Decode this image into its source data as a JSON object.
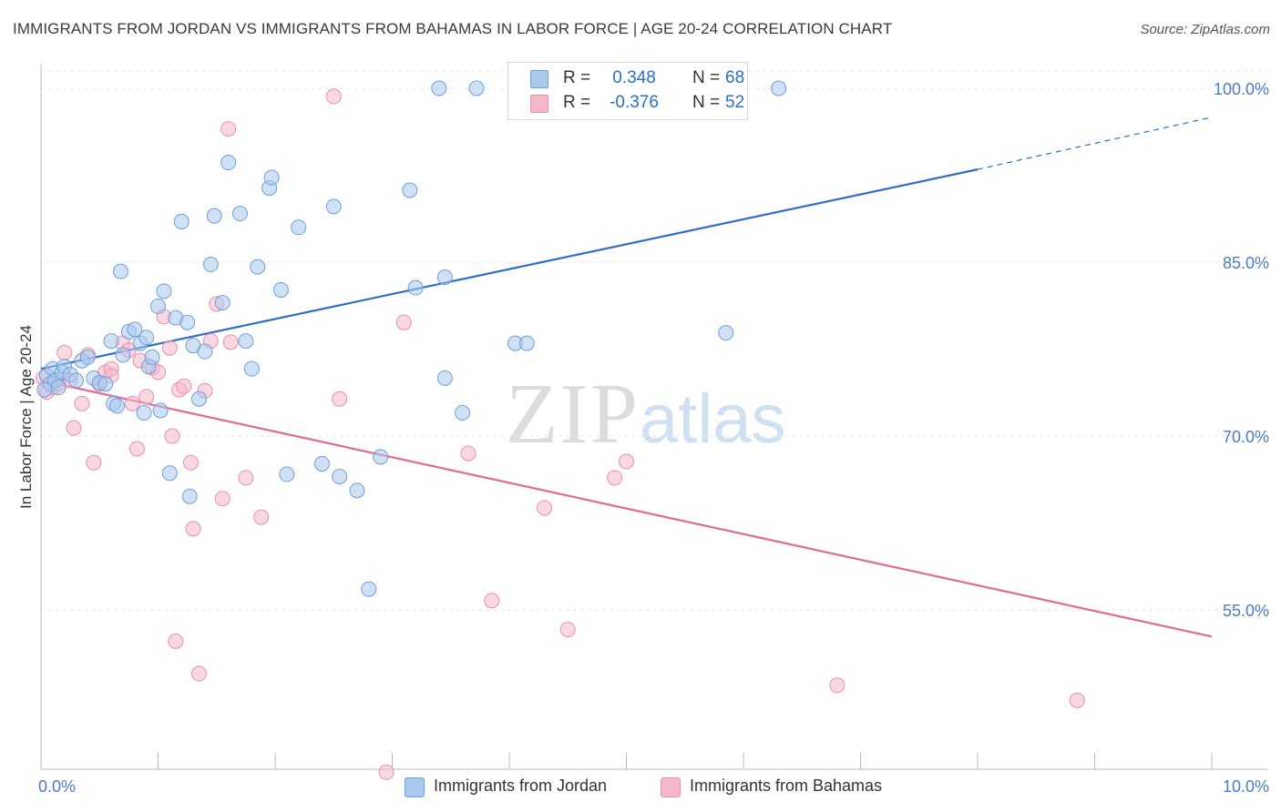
{
  "header": {
    "title": "IMMIGRANTS FROM JORDAN VS IMMIGRANTS FROM BAHAMAS IN LABOR FORCE | AGE 20-24 CORRELATION CHART",
    "source": "Source: ZipAtlas.com"
  },
  "watermark": {
    "zip": "ZIP",
    "atlas": "atlas"
  },
  "legend": {
    "jordan": {
      "r_label": "R =",
      "r_value": "0.348",
      "n_label": "N =",
      "n_value": "68"
    },
    "bahamas": {
      "r_label": "R =",
      "r_value": "-0.376",
      "n_label": "N =",
      "n_value": "52"
    }
  },
  "bottom_legend": {
    "jordan": "Immigrants from Jordan",
    "bahamas": "Immigrants from Bahamas"
  },
  "colors": {
    "jordan_fill": "#a9c8ee",
    "jordan_stroke": "#6f9fd8",
    "jordan_line": "#2e6ec8",
    "bahamas_fill": "#f5b8cb",
    "bahamas_stroke": "#e98fab",
    "bahamas_line": "#e06a95",
    "tick_label": "#4a7cc7",
    "grid": "#e4e4e4"
  },
  "chart_data": {
    "type": "scatter",
    "title": "IMMIGRANTS FROM JORDAN VS IMMIGRANTS FROM BAHAMAS IN LABOR FORCE | AGE 20-24 CORRELATION CHART",
    "xlabel": "",
    "ylabel": "In Labor Force | Age 20-24",
    "xlim": [
      0.0,
      10.0
    ],
    "ylim": [
      40.0,
      102.0
    ],
    "x_tick_labels": [
      "0.0%",
      "10.0%"
    ],
    "y_ticks": [
      55.0,
      70.0,
      85.0,
      100.0
    ],
    "y_tick_labels": [
      "55.0%",
      "70.0%",
      "85.0%",
      "100.0%"
    ],
    "grid": true,
    "legend_position": "top-center",
    "series": [
      {
        "name": "Immigrants from Jordan",
        "r": 0.348,
        "n": 68,
        "trend": {
          "x": [
            0.0,
            8.0
          ],
          "y": [
            75.8,
            93.0
          ],
          "dashed_to": [
            10.0,
            97.5
          ]
        },
        "points": [
          [
            0.05,
            75.2
          ],
          [
            0.08,
            74.5
          ],
          [
            0.1,
            75.8
          ],
          [
            0.12,
            74.8
          ],
          [
            0.15,
            74.2
          ],
          [
            0.18,
            75.5
          ],
          [
            0.2,
            76.0
          ],
          [
            0.25,
            75.3
          ],
          [
            0.3,
            74.8
          ],
          [
            0.35,
            76.5
          ],
          [
            0.4,
            76.8
          ],
          [
            0.45,
            75.0
          ],
          [
            0.5,
            74.6
          ],
          [
            0.55,
            74.5
          ],
          [
            0.6,
            78.2
          ],
          [
            0.62,
            72.8
          ],
          [
            0.65,
            72.6
          ],
          [
            0.68,
            84.2
          ],
          [
            0.7,
            77.0
          ],
          [
            0.75,
            79.0
          ],
          [
            0.8,
            79.2
          ],
          [
            0.85,
            78.0
          ],
          [
            0.9,
            78.5
          ],
          [
            0.88,
            72.0
          ],
          [
            0.92,
            76.0
          ],
          [
            0.95,
            76.8
          ],
          [
            1.0,
            81.2
          ],
          [
            1.02,
            72.2
          ],
          [
            1.05,
            82.5
          ],
          [
            1.1,
            66.8
          ],
          [
            1.15,
            80.2
          ],
          [
            1.2,
            88.5
          ],
          [
            1.25,
            79.8
          ],
          [
            1.27,
            64.8
          ],
          [
            1.3,
            77.8
          ],
          [
            1.35,
            73.2
          ],
          [
            1.4,
            77.3
          ],
          [
            1.45,
            84.8
          ],
          [
            1.48,
            89.0
          ],
          [
            1.55,
            81.5
          ],
          [
            1.6,
            93.6
          ],
          [
            1.7,
            89.2
          ],
          [
            1.75,
            78.2
          ],
          [
            1.8,
            75.8
          ],
          [
            1.85,
            84.6
          ],
          [
            1.95,
            91.4
          ],
          [
            1.97,
            92.3
          ],
          [
            2.05,
            82.6
          ],
          [
            2.1,
            66.7
          ],
          [
            2.2,
            88.0
          ],
          [
            2.4,
            67.6
          ],
          [
            2.5,
            89.8
          ],
          [
            2.55,
            66.5
          ],
          [
            2.7,
            65.3
          ],
          [
            2.8,
            56.8
          ],
          [
            2.9,
            68.2
          ],
          [
            3.15,
            91.2
          ],
          [
            3.2,
            82.8
          ],
          [
            3.45,
            83.7
          ],
          [
            3.45,
            75.0
          ],
          [
            3.6,
            72.0
          ],
          [
            3.4,
            100.0
          ],
          [
            3.72,
            100.0
          ],
          [
            4.05,
            78.0
          ],
          [
            4.15,
            78.0
          ],
          [
            5.85,
            78.9
          ],
          [
            6.3,
            100.0
          ],
          [
            0.03,
            74.0
          ]
        ]
      },
      {
        "name": "Immigrants from Bahamas",
        "r": -0.376,
        "n": 52,
        "trend": {
          "x": [
            0.0,
            10.0
          ],
          "y": [
            74.8,
            52.7
          ]
        },
        "points": [
          [
            0.05,
            73.8
          ],
          [
            0.1,
            74.2
          ],
          [
            0.15,
            74.5
          ],
          [
            0.2,
            77.2
          ],
          [
            0.25,
            74.8
          ],
          [
            0.28,
            70.7
          ],
          [
            0.35,
            72.8
          ],
          [
            0.4,
            77.0
          ],
          [
            0.45,
            67.7
          ],
          [
            0.5,
            74.5
          ],
          [
            0.55,
            75.5
          ],
          [
            0.6,
            75.8
          ],
          [
            0.7,
            78.0
          ],
          [
            0.75,
            77.4
          ],
          [
            0.78,
            72.8
          ],
          [
            0.82,
            68.9
          ],
          [
            0.85,
            76.5
          ],
          [
            0.9,
            73.4
          ],
          [
            0.95,
            75.9
          ],
          [
            1.0,
            75.5
          ],
          [
            1.05,
            80.3
          ],
          [
            1.1,
            77.6
          ],
          [
            1.12,
            70.0
          ],
          [
            1.15,
            52.3
          ],
          [
            1.18,
            74.0
          ],
          [
            1.22,
            74.3
          ],
          [
            1.28,
            67.7
          ],
          [
            1.3,
            62.0
          ],
          [
            1.35,
            49.5
          ],
          [
            1.4,
            73.9
          ],
          [
            1.45,
            78.2
          ],
          [
            1.5,
            81.4
          ],
          [
            1.55,
            64.6
          ],
          [
            1.6,
            96.5
          ],
          [
            1.62,
            78.1
          ],
          [
            1.75,
            66.4
          ],
          [
            1.88,
            63.0
          ],
          [
            2.5,
            99.3
          ],
          [
            2.55,
            73.2
          ],
          [
            2.95,
            41.0
          ],
          [
            3.1,
            79.8
          ],
          [
            3.65,
            68.5
          ],
          [
            3.85,
            55.8
          ],
          [
            4.3,
            63.8
          ],
          [
            4.5,
            53.3
          ],
          [
            4.8,
            100.0
          ],
          [
            4.9,
            66.4
          ],
          [
            5.0,
            67.8
          ],
          [
            6.8,
            48.5
          ],
          [
            8.85,
            47.2
          ],
          [
            0.02,
            75.0
          ],
          [
            0.6,
            75.2
          ]
        ]
      }
    ]
  }
}
